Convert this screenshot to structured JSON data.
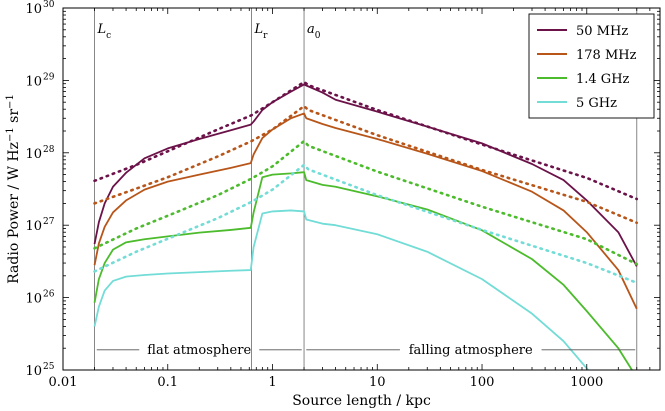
{
  "chart_data": {
    "type": "line",
    "xscale": "log",
    "yscale": "log",
    "xlim": [
      0.01,
      5000
    ],
    "ylim": [
      1e+25,
      1e+30
    ],
    "xlabel": "Source length / kpc",
    "ylabel_parts": {
      "main": "Radio Power / W Hz",
      "exp1": "−1",
      "mid": " sr",
      "exp2": "−1"
    },
    "x_ticks": [
      {
        "value": 0.01,
        "label": "0.01"
      },
      {
        "value": 0.1,
        "label": "0.1"
      },
      {
        "value": 1,
        "label": "1"
      },
      {
        "value": 10,
        "label": "10"
      },
      {
        "value": 100,
        "label": "100"
      },
      {
        "value": 1000,
        "label": "1000"
      }
    ],
    "y_ticks": [
      {
        "exp": 25,
        "base": "10",
        "sup": "25"
      },
      {
        "exp": 26,
        "base": "10",
        "sup": "26"
      },
      {
        "exp": 27,
        "base": "10",
        "sup": "27"
      },
      {
        "exp": 28,
        "base": "10",
        "sup": "28"
      },
      {
        "exp": 29,
        "base": "10",
        "sup": "29"
      },
      {
        "exp": 30,
        "base": "10",
        "sup": "30"
      }
    ],
    "markers": [
      {
        "x": 0.02,
        "label": "L",
        "sub": "c"
      },
      {
        "x": 0.63,
        "label": "L",
        "sub": "r"
      },
      {
        "x": 2.0,
        "label": "a",
        "sub": "0"
      },
      {
        "x": 3000,
        "label": "",
        "sub": ""
      }
    ],
    "regions": [
      {
        "label": "flat atmosphere",
        "x_start": 0.021,
        "x_end": 1.9,
        "y": 1.9e+25
      },
      {
        "label": "falling atmosphere",
        "x_start": 2.1,
        "x_end": 2900,
        "y": 1.9e+25
      }
    ],
    "legend": {
      "position": "top-right"
    },
    "series": [
      {
        "name": "50 MHz",
        "color": "#6b1249",
        "solid": [
          [
            0.02,
            5.5e+26
          ],
          [
            0.022,
            1.1e+27
          ],
          [
            0.025,
            2e+27
          ],
          [
            0.03,
            3.4e+27
          ],
          [
            0.04,
            5.3e+27
          ],
          [
            0.06,
            8.4e+27
          ],
          [
            0.1,
            1.15e+28
          ],
          [
            0.2,
            1.55e+28
          ],
          [
            0.4,
            2.05e+28
          ],
          [
            0.62,
            2.45e+28
          ],
          [
            0.66,
            2.7e+28
          ],
          [
            0.8,
            3.9e+28
          ],
          [
            1.0,
            5e+28
          ],
          [
            1.5,
            7e+28
          ],
          [
            2.0,
            8.8e+28
          ],
          [
            2.1,
            8.5e+28
          ],
          [
            3,
            6.8e+28
          ],
          [
            4,
            5.4e+28
          ],
          [
            10,
            3.7e+28
          ],
          [
            30,
            2.3e+28
          ],
          [
            100,
            1.35e+28
          ],
          [
            300,
            7e+27
          ],
          [
            600,
            4.2e+27
          ],
          [
            1000,
            2.2e+27
          ],
          [
            2000,
            8e+26
          ],
          [
            3000,
            2.7e+26
          ]
        ],
        "dotted": [
          [
            0.02,
            4.1e+27
          ],
          [
            0.05,
            6.8e+27
          ],
          [
            0.1,
            1.05e+28
          ],
          [
            0.3,
            2.1e+28
          ],
          [
            0.63,
            3.3e+28
          ],
          [
            1.0,
            5e+28
          ],
          [
            2.0,
            9.5e+28
          ],
          [
            2.2,
            8.6e+28
          ],
          [
            10,
            3.9e+28
          ],
          [
            100,
            1.3e+28
          ],
          [
            1000,
            4.5e+27
          ],
          [
            3000,
            2.3e+27
          ]
        ]
      },
      {
        "name": "178 MHz",
        "color": "#b8561a",
        "solid": [
          [
            0.02,
            2.8e+26
          ],
          [
            0.022,
            5.6e+26
          ],
          [
            0.025,
            9.5e+26
          ],
          [
            0.03,
            1.5e+27
          ],
          [
            0.04,
            2.2e+27
          ],
          [
            0.06,
            3.1e+27
          ],
          [
            0.1,
            4e+27
          ],
          [
            0.2,
            5e+27
          ],
          [
            0.4,
            6.2e+27
          ],
          [
            0.62,
            7.2e+27
          ],
          [
            0.66,
            9.5e+27
          ],
          [
            0.8,
            1.6e+28
          ],
          [
            1.0,
            2.1e+28
          ],
          [
            1.5,
            3e+28
          ],
          [
            2.0,
            3.5e+28
          ],
          [
            2.1,
            3e+28
          ],
          [
            3,
            2.5e+28
          ],
          [
            4,
            2.2e+28
          ],
          [
            10,
            1.55e+28
          ],
          [
            30,
            9.7e+27
          ],
          [
            100,
            5.6e+27
          ],
          [
            300,
            2.9e+27
          ],
          [
            600,
            1.6e+27
          ],
          [
            1000,
            8e+26
          ],
          [
            2000,
            2.4e+26
          ],
          [
            3000,
            7e+25
          ]
        ],
        "dotted": [
          [
            0.02,
            2e+27
          ],
          [
            0.05,
            3.2e+27
          ],
          [
            0.1,
            4.6e+27
          ],
          [
            0.3,
            8.9e+27
          ],
          [
            0.63,
            1.45e+28
          ],
          [
            1.0,
            2.1e+28
          ],
          [
            2.0,
            4.4e+28
          ],
          [
            2.2,
            3.9e+28
          ],
          [
            10,
            1.75e+28
          ],
          [
            100,
            5.8e+27
          ],
          [
            1000,
            2.1e+27
          ],
          [
            3000,
            1.08e+27
          ]
        ]
      },
      {
        "name": "1.4 GHz",
        "color": "#4cbb2c",
        "solid": [
          [
            0.02,
            8.5e+25
          ],
          [
            0.022,
            1.8e+26
          ],
          [
            0.025,
            3e+26
          ],
          [
            0.03,
            4.6e+26
          ],
          [
            0.04,
            5.8e+26
          ],
          [
            0.06,
            6.4e+26
          ],
          [
            0.1,
            7e+26
          ],
          [
            0.2,
            7.9e+26
          ],
          [
            0.4,
            8.6e+26
          ],
          [
            0.62,
            9.2e+26
          ],
          [
            0.66,
            1.5e+27
          ],
          [
            0.8,
            4.6e+27
          ],
          [
            1.0,
            5e+27
          ],
          [
            1.5,
            5.2e+27
          ],
          [
            2.0,
            5.4e+27
          ],
          [
            2.1,
            4.2e+27
          ],
          [
            3,
            3.6e+27
          ],
          [
            4,
            3.4e+27
          ],
          [
            10,
            2.5e+27
          ],
          [
            30,
            1.65e+27
          ],
          [
            100,
            8.5e+26
          ],
          [
            300,
            3.4e+26
          ],
          [
            600,
            1.5e+26
          ],
          [
            1000,
            6.5e+25
          ],
          [
            2000,
            2e+25
          ],
          [
            2700,
            1e+25
          ]
        ],
        "dotted": [
          [
            0.02,
            4.8e+26
          ],
          [
            0.05,
            9e+26
          ],
          [
            0.1,
            1.35e+27
          ],
          [
            0.3,
            2.6e+27
          ],
          [
            0.63,
            4.4e+27
          ],
          [
            1.0,
            6.5e+27
          ],
          [
            2.0,
            1.45e+28
          ],
          [
            2.2,
            1.25e+28
          ],
          [
            10,
            5.5e+27
          ],
          [
            100,
            1.8e+27
          ],
          [
            1000,
            6.4e+26
          ],
          [
            3000,
            2.9e+26
          ]
        ]
      },
      {
        "name": "5 GHz",
        "color": "#72dcd6",
        "solid": [
          [
            0.02,
            4e+25
          ],
          [
            0.022,
            7.5e+25
          ],
          [
            0.025,
            1.25e+26
          ],
          [
            0.03,
            1.7e+26
          ],
          [
            0.04,
            1.95e+26
          ],
          [
            0.06,
            2.05e+26
          ],
          [
            0.1,
            2.15e+26
          ],
          [
            0.2,
            2.25e+26
          ],
          [
            0.4,
            2.35e+26
          ],
          [
            0.62,
            2.4e+26
          ],
          [
            0.66,
            5e+26
          ],
          [
            0.8,
            1.45e+27
          ],
          [
            1.0,
            1.55e+27
          ],
          [
            1.5,
            1.6e+27
          ],
          [
            2.0,
            1.55e+27
          ],
          [
            2.1,
            1.2e+27
          ],
          [
            3,
            1.05e+27
          ],
          [
            4,
            1e+27
          ],
          [
            10,
            7.5e+26
          ],
          [
            30,
            4.3e+26
          ],
          [
            100,
            1.8e+26
          ],
          [
            300,
            6e+25
          ],
          [
            600,
            2.5e+25
          ],
          [
            1000,
            1.05e+25
          ],
          [
            1100,
            9e+24
          ]
        ],
        "dotted": [
          [
            0.02,
            2.3e+26
          ],
          [
            0.05,
            4.3e+26
          ],
          [
            0.1,
            6.5e+26
          ],
          [
            0.3,
            1.25e+27
          ],
          [
            0.63,
            2.1e+27
          ],
          [
            1.0,
            3.1e+27
          ],
          [
            2.0,
            6.8e+27
          ],
          [
            2.2,
            5.9e+27
          ],
          [
            10,
            2.6e+27
          ],
          [
            100,
            8.6e+26
          ],
          [
            1000,
            3e+26
          ],
          [
            3000,
            1.6e+26
          ]
        ]
      }
    ]
  }
}
